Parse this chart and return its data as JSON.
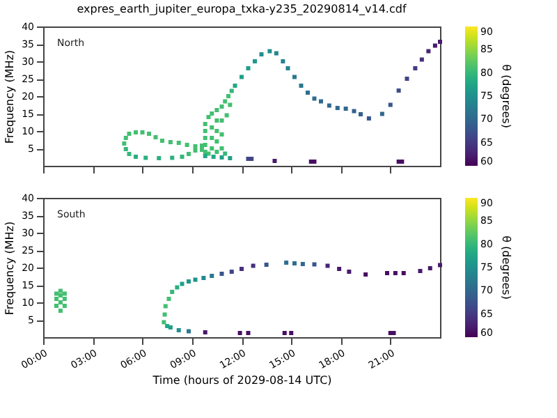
{
  "chart_data": [
    {
      "type": "scatter",
      "title": "expres_earth_jupiter_europa_txka-y235_20290814_v14.cdf",
      "ylabel": "Frequency (MHz)",
      "clabel": "θ (degrees)",
      "annotations": [
        "North"
      ],
      "grid": false,
      "tick_labels": "y",
      "xlim": [
        0,
        24
      ],
      "xticks": [
        0,
        3,
        6,
        9,
        12,
        15,
        18,
        21
      ],
      "ylim": [
        0,
        40
      ],
      "yticks": [
        5,
        10,
        15,
        20,
        25,
        30,
        35,
        40
      ],
      "clim": [
        60,
        90
      ],
      "cticks": [
        60,
        65,
        70,
        75,
        80,
        85,
        90
      ],
      "x": [
        4.9,
        5.0,
        5.2,
        5.6,
        6.0,
        6.4,
        6.8,
        7.2,
        7.7,
        8.2,
        8.7,
        9.2,
        9.6,
        5.0,
        5.2,
        5.6,
        6.2,
        7.0,
        7.8,
        8.4,
        8.8,
        9.2,
        9.6,
        9.8,
        9.8,
        9.8,
        9.8,
        9.8,
        10.0,
        10.0,
        10.2,
        10.2,
        10.2,
        10.2,
        10.5,
        10.5,
        10.5,
        10.5,
        10.5,
        10.8,
        10.8,
        10.8,
        10.8,
        11.0,
        11.2,
        11.4,
        11.0,
        11.1,
        11.3,
        9.8,
        10.3,
        10.8,
        11.3,
        11.6,
        12.0,
        12.4,
        12.8,
        13.2,
        13.7,
        14.1,
        14.5,
        14.8,
        15.2,
        15.6,
        16.0,
        16.4,
        16.8,
        17.3,
        17.8,
        18.3,
        18.8,
        19.2,
        19.7,
        20.5,
        21.0,
        21.5,
        22.0,
        22.5,
        22.9,
        23.3,
        23.7,
        24.0,
        12.4,
        12.6,
        14.0,
        16.2,
        16.4,
        21.5,
        21.7
      ],
      "values": [
        6.4,
        8,
        9.2,
        9.6,
        9.6,
        9.2,
        8.2,
        7.2,
        6.8,
        6.6,
        6.0,
        5.6,
        5.8,
        4.8,
        3.4,
        2.6,
        2.3,
        2.2,
        2.3,
        2.6,
        3.4,
        4.4,
        4.6,
        4,
        6,
        8,
        10,
        12,
        3.5,
        14,
        5,
        8,
        11,
        15,
        4,
        7,
        10,
        13,
        16,
        5,
        9,
        13,
        17,
        18.5,
        20,
        21.5,
        3.5,
        14.5,
        17.5,
        2.8,
        2.6,
        2.4,
        2.2,
        23,
        25.5,
        28,
        30,
        32,
        32.9,
        32.3,
        30,
        28,
        25.5,
        23,
        21,
        19.3,
        18.5,
        17.3,
        16.6,
        16.4,
        15.7,
        14.8,
        13.6,
        14.9,
        17.5,
        21.6,
        25,
        28,
        30.5,
        32.9,
        34.5,
        35.6,
        2.0,
        2.0,
        1.4,
        1.2,
        1.2,
        1.2,
        1.2
      ],
      "cvalues": [
        81,
        81,
        81,
        81,
        81,
        81,
        81,
        81,
        81,
        81,
        81,
        81,
        81,
        80,
        80,
        79,
        79,
        79,
        79,
        80,
        81,
        81,
        81,
        81,
        81,
        81,
        81,
        81,
        81,
        81,
        81,
        81,
        81,
        81,
        81,
        81,
        81,
        81,
        81,
        81,
        81,
        81,
        81,
        81,
        81,
        80,
        80,
        81,
        81,
        78,
        78,
        77,
        77,
        78,
        77,
        77,
        76,
        75,
        75,
        74,
        73,
        73,
        72,
        72,
        71,
        71,
        70,
        70,
        70,
        70,
        69,
        69,
        68,
        70,
        68,
        67,
        66,
        65,
        64,
        63,
        62,
        62,
        66,
        66,
        62,
        61,
        61,
        61,
        61
      ]
    },
    {
      "type": "scatter",
      "xlabel": "Time (hours of 2029-08-14 UTC)",
      "ylabel": "Frequency (MHz)",
      "clabel": "θ (degrees)",
      "annotations": [
        "South"
      ],
      "grid": false,
      "xlim": [
        0,
        24
      ],
      "xticks": [
        {
          "value": 0,
          "label": "00:00"
        },
        {
          "value": 3,
          "label": "03:00"
        },
        {
          "value": 6,
          "label": "06:00"
        },
        {
          "value": 9,
          "label": "09:00"
        },
        {
          "value": 12,
          "label": "12:00"
        },
        {
          "value": 15,
          "label": "15:00"
        },
        {
          "value": 18,
          "label": "18:00"
        },
        {
          "value": 21,
          "label": "21:00"
        }
      ],
      "ylim": [
        0,
        40
      ],
      "yticks": [
        5,
        10,
        15,
        20,
        25,
        30,
        35,
        40
      ],
      "clim": [
        60,
        90
      ],
      "cticks": [
        60,
        65,
        70,
        75,
        80,
        85,
        90
      ],
      "x": [
        0.8,
        0.8,
        0.8,
        1.05,
        1.05,
        1.05,
        1.05,
        1.3,
        1.3,
        1.3,
        7.3,
        7.35,
        7.4,
        7.6,
        7.8,
        8.1,
        8.4,
        8.8,
        9.2,
        9.7,
        10.2,
        10.8,
        11.4,
        12.0,
        12.7,
        13.5,
        14.7,
        15.2,
        15.7,
        16.4,
        17.2,
        17.9,
        18.5,
        19.5,
        20.8,
        21.3,
        21.8,
        22.8,
        23.4,
        24.0,
        7.5,
        7.7,
        8.2,
        8.8,
        9.8,
        11.9,
        12.4,
        14.6,
        15.0,
        21.0,
        21.2
      ],
      "values": [
        9,
        11,
        12.5,
        7.6,
        10,
        12,
        13.3,
        9,
        11,
        12.5,
        4.3,
        6.5,
        8.9,
        11,
        13,
        14.3,
        15.3,
        16,
        16.5,
        17,
        17.6,
        18.2,
        18.8,
        19.6,
        20.5,
        20.8,
        21.4,
        21.2,
        21,
        20.9,
        20.5,
        19.6,
        18.8,
        18,
        18.4,
        18.4,
        18.4,
        19,
        19.8,
        20.7,
        3.2,
        2.8,
        2.0,
        1.7,
        1.4,
        1.2,
        1.2,
        1.2,
        1.2,
        1.2,
        1.2
      ],
      "cvalues": [
        81,
        81,
        81,
        81,
        81,
        81,
        81,
        81,
        81,
        81,
        81,
        81,
        81,
        81,
        80,
        79,
        77,
        76,
        75,
        74,
        72,
        68,
        66,
        64,
        64,
        68,
        71,
        71,
        70,
        68,
        63,
        62,
        62,
        61,
        61,
        61,
        61,
        62,
        62,
        62,
        78,
        77,
        75,
        72,
        62,
        61,
        61,
        61,
        61,
        61,
        61
      ]
    }
  ]
}
